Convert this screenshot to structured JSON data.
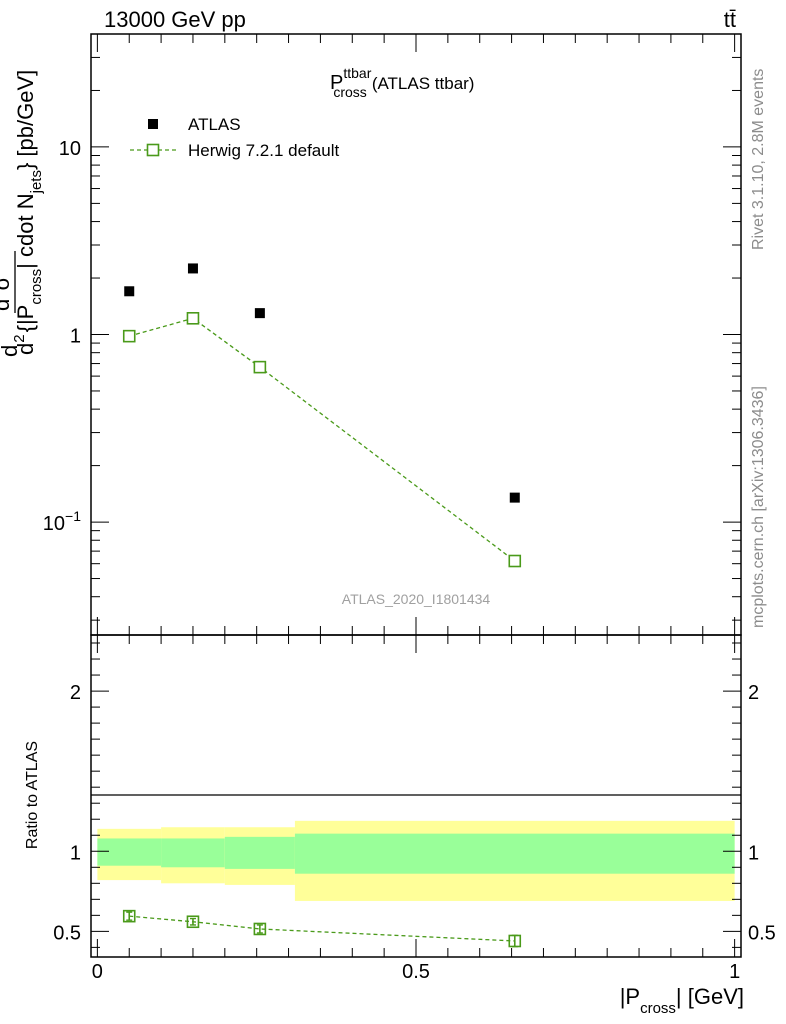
{
  "header": {
    "beam": "13000 GeV pp",
    "process": "tt̄"
  },
  "side_labels": {
    "rivet": "Rivet 3.1.10,  2.8M events",
    "mcplots": "mcplots.cern.ch [arXiv:1306.3436]"
  },
  "chart_data": [
    {
      "type": "scatter",
      "panel": "main",
      "title_main": "P",
      "title_sup": "ttbar",
      "title_sub": "cross",
      "title_rest": "(ATLAS ttbar)",
      "analysis_id": "ATLAS_2020_I1801434",
      "ylabel": {
        "d_top": "d",
        "sigma_sup": "2",
        "sigma": "σ",
        "sigma_tag": "ttd",
        "d_bottom": "d",
        "d_bottom_sup": "2",
        "brace_open": "{|P",
        "brace_sub": "cross",
        "brace_mid": "| cdot N",
        "brace_sub2": "jets",
        "units": "} [pb/GeV]"
      },
      "yscale": "log",
      "ylim": [
        0.025,
        40
      ],
      "xlim": [
        -0.01,
        1.01
      ],
      "yticks": [
        {
          "value": 0.1,
          "base": "10",
          "exp": "−1"
        },
        {
          "value": 1,
          "base": "1",
          "exp": ""
        },
        {
          "value": 10,
          "base": "10",
          "exp": ""
        }
      ],
      "legend": {
        "position": "top-left",
        "entries": [
          "ATLAS",
          "Herwig 7.2.1 default"
        ]
      },
      "series": [
        {
          "name": "ATLAS",
          "marker": "filled-square",
          "color": "#000000",
          "x": [
            0.05,
            0.15,
            0.255,
            0.655
          ],
          "y": [
            1.7,
            2.25,
            1.3,
            0.135
          ]
        },
        {
          "name": "Herwig 7.2.1 default",
          "marker": "open-square",
          "line": "dashed",
          "color": "#4a9a1a",
          "x": [
            0.05,
            0.15,
            0.255,
            0.655
          ],
          "y": [
            0.98,
            1.22,
            0.67,
            0.062
          ]
        }
      ]
    },
    {
      "type": "scatter",
      "panel": "ratio",
      "ylabel": "Ratio to ATLAS",
      "xlabel_pre": "|P",
      "xlabel_sub": "cross",
      "xlabel_post": "| [GeV]",
      "xlim": [
        -0.01,
        1.01
      ],
      "ylim": [
        0.34,
        2.35
      ],
      "xticks": [
        {
          "value": 0,
          "label": "0"
        },
        {
          "value": 0.5,
          "label": "0.5"
        },
        {
          "value": 1,
          "label": "1"
        }
      ],
      "yticks": [
        {
          "value": 0.5,
          "label": "0.5"
        },
        {
          "value": 1,
          "label": "1"
        },
        {
          "value": 2,
          "label": "2"
        }
      ],
      "bands": [
        {
          "x0": 0.0,
          "x1": 0.1,
          "inner": [
            0.91,
            1.08
          ],
          "outer": [
            0.82,
            1.14
          ]
        },
        {
          "x0": 0.1,
          "x1": 0.2,
          "inner": [
            0.9,
            1.08
          ],
          "outer": [
            0.8,
            1.15
          ]
        },
        {
          "x0": 0.2,
          "x1": 0.31,
          "inner": [
            0.89,
            1.09
          ],
          "outer": [
            0.79,
            1.15
          ]
        },
        {
          "x0": 0.31,
          "x1": 1.0,
          "inner": [
            0.86,
            1.11
          ],
          "outer": [
            0.69,
            1.19
          ]
        }
      ],
      "band_colors": {
        "inner": "#99ff99",
        "outer": "#ffff99"
      },
      "series": [
        {
          "name": "Herwig 7.2.1 default",
          "color": "#4a9a1a",
          "x": [
            0.05,
            0.15,
            0.255,
            0.655
          ],
          "y": [
            0.595,
            0.56,
            0.515,
            0.44
          ],
          "yerr": [
            0.025,
            0.02,
            0.025,
            0.035
          ]
        }
      ]
    }
  ]
}
